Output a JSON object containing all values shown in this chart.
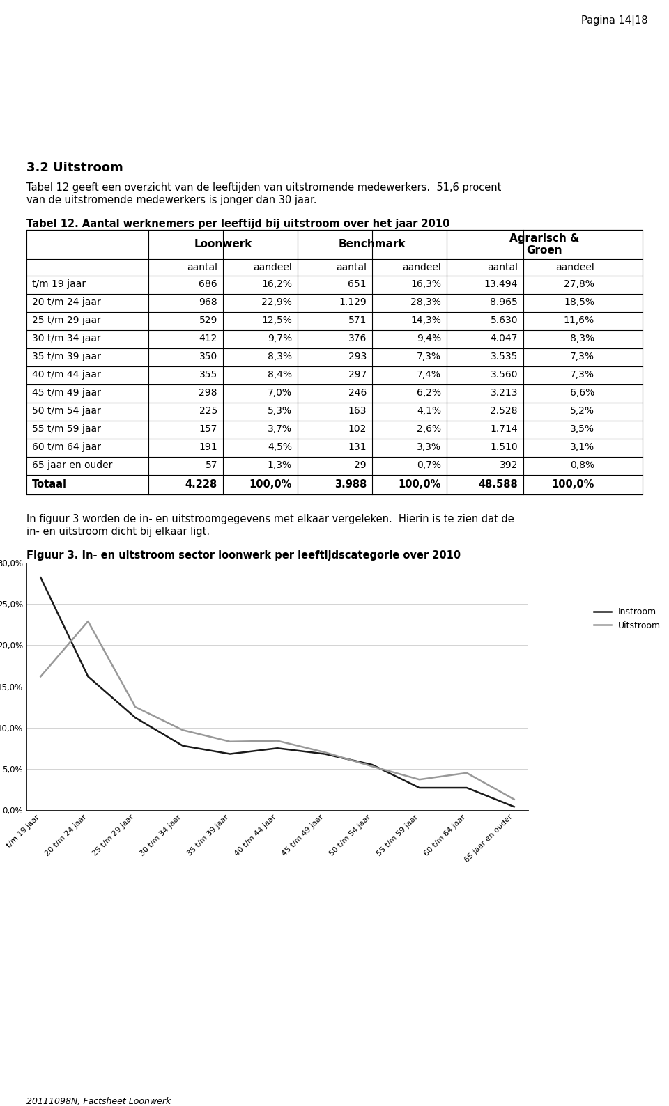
{
  "page_number": "Pagina 14|18",
  "section_title": "3.2 Uitstroom",
  "section_text1": "Tabel 12 geeft een overzicht van de leeftijden van uitstromende medewerkers.  51,6 procent",
  "section_text2": "van de uitstromende medewerkers is jonger dan 30 jaar.",
  "table_title": "Tabel 12. Aantal werknemers per leeftijd bij uitstroom over het jaar 2010",
  "sub_headers": [
    "",
    "aantal",
    "aandeel",
    "aantal",
    "aandeel",
    "aantal",
    "aandeel"
  ],
  "rows": [
    [
      "t/m 19 jaar",
      "686",
      "16,2%",
      "651",
      "16,3%",
      "13.494",
      "27,8%"
    ],
    [
      "20 t/m 24 jaar",
      "968",
      "22,9%",
      "1.129",
      "28,3%",
      "8.965",
      "18,5%"
    ],
    [
      "25 t/m 29 jaar",
      "529",
      "12,5%",
      "571",
      "14,3%",
      "5.630",
      "11,6%"
    ],
    [
      "30 t/m 34 jaar",
      "412",
      "9,7%",
      "376",
      "9,4%",
      "4.047",
      "8,3%"
    ],
    [
      "35 t/m 39 jaar",
      "350",
      "8,3%",
      "293",
      "7,3%",
      "3.535",
      "7,3%"
    ],
    [
      "40 t/m 44 jaar",
      "355",
      "8,4%",
      "297",
      "7,4%",
      "3.560",
      "7,3%"
    ],
    [
      "45 t/m 49 jaar",
      "298",
      "7,0%",
      "246",
      "6,2%",
      "3.213",
      "6,6%"
    ],
    [
      "50 t/m 54 jaar",
      "225",
      "5,3%",
      "163",
      "4,1%",
      "2.528",
      "5,2%"
    ],
    [
      "55 t/m 59 jaar",
      "157",
      "3,7%",
      "102",
      "2,6%",
      "1.714",
      "3,5%"
    ],
    [
      "60 t/m 64 jaar",
      "191",
      "4,5%",
      "131",
      "3,3%",
      "1.510",
      "3,1%"
    ],
    [
      "65 jaar en ouder",
      "57",
      "1,3%",
      "29",
      "0,7%",
      "392",
      "0,8%"
    ]
  ],
  "totaal_row": [
    "Totaal",
    "4.228",
    "100,0%",
    "3.988",
    "100,0%",
    "48.588",
    "100,0%"
  ],
  "para_text1": "In figuur 3 worden de in- en uitstroomgegevens met elkaar vergeleken.  Hierin is te zien dat de",
  "para_text2": "in- en uitstroom dicht bij elkaar ligt.",
  "chart_title": "Figuur 3. In- en uitstroom sector loonwerk per leeftijdscategorie over 2010",
  "chart_categories": [
    "t/m 19 jaar",
    "20 t/m 24 jaar",
    "25 t/m 29 jaar",
    "30 t/m 34 jaar",
    "35 t/m 39 jaar",
    "40 t/m 44 jaar",
    "45 t/m 49 jaar",
    "50 t/m 54 jaar",
    "55 t/m 59 jaar",
    "60 t/m 64 jaar",
    "65 jaar en ouder"
  ],
  "instroom_values": [
    28.2,
    16.2,
    11.2,
    7.8,
    6.8,
    7.5,
    6.8,
    5.5,
    2.7,
    2.7,
    0.4
  ],
  "uitstroom_values": [
    16.2,
    22.9,
    12.5,
    9.7,
    8.3,
    8.4,
    7.0,
    5.3,
    3.7,
    4.5,
    1.3
  ],
  "footer_text": "20111098N, Factsheet Loonwerk",
  "bg_color": "#ffffff",
  "instroom_color": "#1a1a1a",
  "uitstroom_color": "#999999"
}
